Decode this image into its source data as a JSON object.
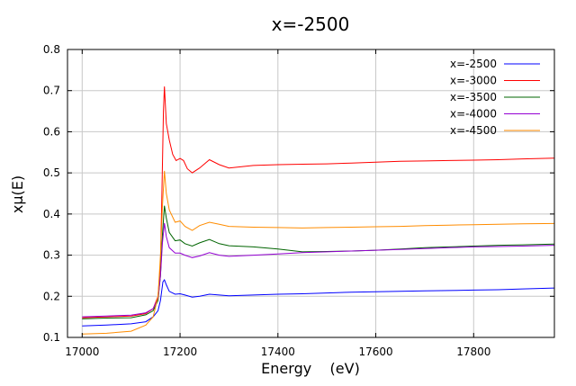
{
  "chart_data": {
    "type": "line",
    "title": "x=-2500",
    "xlabel": "Energy    (eV)",
    "ylabel": "xμ(E)",
    "xlim": [
      16970,
      17965
    ],
    "ylim": [
      0.1,
      0.8
    ],
    "xticks": [
      17000,
      17200,
      17400,
      17600,
      17800
    ],
    "yticks": [
      0.1,
      0.2,
      0.3,
      0.4,
      0.5,
      0.6,
      0.7,
      0.8
    ],
    "grid": true,
    "legend_position": "top-right",
    "series": [
      {
        "name": "x=-2500",
        "color": "#0000ff",
        "x": [
          17000,
          17050,
          17100,
          17130,
          17145,
          17155,
          17160,
          17165,
          17168,
          17172,
          17178,
          17190,
          17200,
          17210,
          17225,
          17240,
          17260,
          17280,
          17300,
          17350,
          17400,
          17450,
          17500,
          17550,
          17600,
          17650,
          17700,
          17750,
          17800,
          17850,
          17900,
          17965
        ],
        "values": [
          0.128,
          0.13,
          0.133,
          0.138,
          0.15,
          0.165,
          0.19,
          0.235,
          0.24,
          0.228,
          0.212,
          0.205,
          0.206,
          0.203,
          0.198,
          0.2,
          0.205,
          0.203,
          0.201,
          0.203,
          0.205,
          0.206,
          0.208,
          0.21,
          0.211,
          0.212,
          0.213,
          0.214,
          0.215,
          0.216,
          0.218,
          0.22
        ]
      },
      {
        "name": "x=-3000",
        "color": "#ff0000",
        "x": [
          17000,
          17050,
          17100,
          17130,
          17145,
          17155,
          17160,
          17163,
          17166,
          17168,
          17172,
          17178,
          17185,
          17192,
          17200,
          17207,
          17215,
          17225,
          17240,
          17260,
          17280,
          17300,
          17350,
          17400,
          17450,
          17500,
          17550,
          17600,
          17650,
          17700,
          17750,
          17800,
          17850,
          17900,
          17965
        ],
        "values": [
          0.148,
          0.15,
          0.152,
          0.158,
          0.17,
          0.2,
          0.28,
          0.45,
          0.65,
          0.71,
          0.62,
          0.58,
          0.545,
          0.53,
          0.535,
          0.53,
          0.51,
          0.5,
          0.512,
          0.532,
          0.52,
          0.512,
          0.518,
          0.52,
          0.521,
          0.522,
          0.524,
          0.526,
          0.528,
          0.529,
          0.53,
          0.531,
          0.532,
          0.534,
          0.536
        ]
      },
      {
        "name": "x=-3500",
        "color": "#006400",
        "x": [
          17000,
          17050,
          17100,
          17130,
          17145,
          17155,
          17160,
          17164,
          17168,
          17172,
          17178,
          17190,
          17200,
          17210,
          17225,
          17240,
          17260,
          17280,
          17300,
          17350,
          17400,
          17450,
          17500,
          17550,
          17600,
          17650,
          17700,
          17750,
          17800,
          17850,
          17900,
          17965
        ],
        "values": [
          0.145,
          0.147,
          0.148,
          0.155,
          0.165,
          0.19,
          0.25,
          0.35,
          0.42,
          0.39,
          0.355,
          0.335,
          0.337,
          0.328,
          0.322,
          0.33,
          0.338,
          0.328,
          0.323,
          0.32,
          0.315,
          0.308,
          0.309,
          0.31,
          0.312,
          0.315,
          0.318,
          0.32,
          0.322,
          0.324,
          0.325,
          0.327
        ]
      },
      {
        "name": "x=-4000",
        "color": "#9400d3",
        "x": [
          17000,
          17050,
          17100,
          17130,
          17145,
          17155,
          17160,
          17164,
          17168,
          17172,
          17178,
          17190,
          17200,
          17210,
          17225,
          17240,
          17260,
          17280,
          17300,
          17350,
          17400,
          17450,
          17500,
          17550,
          17600,
          17650,
          17700,
          17750,
          17800,
          17850,
          17900,
          17965
        ],
        "values": [
          0.15,
          0.152,
          0.154,
          0.16,
          0.17,
          0.195,
          0.25,
          0.33,
          0.378,
          0.345,
          0.318,
          0.305,
          0.305,
          0.3,
          0.294,
          0.298,
          0.306,
          0.3,
          0.297,
          0.3,
          0.303,
          0.306,
          0.308,
          0.31,
          0.312,
          0.314,
          0.316,
          0.318,
          0.32,
          0.321,
          0.322,
          0.324
        ]
      },
      {
        "name": "x=-4500",
        "color": "#ff8c00",
        "x": [
          17000,
          17050,
          17100,
          17130,
          17145,
          17155,
          17160,
          17164,
          17168,
          17172,
          17178,
          17190,
          17200,
          17210,
          17225,
          17240,
          17260,
          17280,
          17300,
          17350,
          17400,
          17450,
          17500,
          17550,
          17600,
          17650,
          17700,
          17750,
          17800,
          17850,
          17900,
          17965
        ],
        "values": [
          0.108,
          0.11,
          0.115,
          0.13,
          0.15,
          0.2,
          0.3,
          0.42,
          0.505,
          0.45,
          0.41,
          0.38,
          0.383,
          0.37,
          0.36,
          0.372,
          0.38,
          0.375,
          0.37,
          0.368,
          0.367,
          0.366,
          0.367,
          0.368,
          0.369,
          0.37,
          0.372,
          0.373,
          0.374,
          0.375,
          0.376,
          0.377
        ]
      }
    ]
  }
}
